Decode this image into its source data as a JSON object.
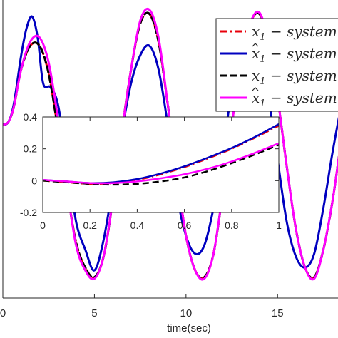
{
  "chart_data": [
    {
      "type": "line",
      "role": "main",
      "xlabel": "time(sec)",
      "xlim": [
        0,
        19
      ],
      "ylim": [
        -1.1,
        1.05
      ],
      "xticks": [
        0,
        5,
        10,
        15
      ],
      "xtick_labels": [
        "0",
        "5",
        "10",
        "15"
      ],
      "grid": false,
      "legend_position": "top-right",
      "series": [
        {
          "name": "x_1 - system",
          "color": "#e8000b",
          "style": "dashdot",
          "x": [
            0,
            0.3,
            0.6,
            1.0,
            1.5,
            2.0,
            2.5,
            3.0,
            3.5,
            4.0,
            4.5,
            5.0,
            5.5,
            6.0,
            6.5,
            7.0,
            7.5,
            8.0,
            8.5,
            9.0,
            9.5,
            10.0,
            10.5,
            11.0,
            11.5,
            12.0,
            12.5,
            13.0,
            13.5,
            14.0,
            14.5,
            15.0,
            15.5,
            16.0,
            16.5,
            17.0,
            17.5,
            18.0,
            18.5,
            19.0
          ],
          "y": [
            0.15,
            0.17,
            0.28,
            0.55,
            0.72,
            0.72,
            0.52,
            0.12,
            -0.32,
            -0.7,
            -0.88,
            -0.95,
            -0.8,
            -0.4,
            0.1,
            0.55,
            0.88,
            0.95,
            0.75,
            0.3,
            -0.2,
            -0.65,
            -0.9,
            -0.95,
            -0.78,
            -0.35,
            0.15,
            0.6,
            0.88,
            0.95,
            0.75,
            0.35,
            -0.15,
            -0.6,
            -0.88,
            -0.95,
            -0.75,
            -0.4,
            0.05,
            0.4
          ]
        },
        {
          "name": "x̂_1 - system",
          "color": "#0000c0",
          "style": "solid",
          "x": [
            0,
            0.3,
            0.6,
            1.0,
            1.3,
            1.6,
            1.9,
            2.2,
            2.6,
            3.0,
            3.5,
            4.0,
            4.5,
            5.0,
            5.5,
            6.0,
            6.5,
            7.0,
            7.5,
            8.0,
            8.5,
            9.0,
            9.5,
            10.0,
            10.5,
            11.0,
            11.5,
            12.0,
            12.5,
            13.0,
            13.5,
            14.0,
            14.5,
            15.0,
            15.5,
            16.0,
            16.5,
            17.0,
            17.5,
            18.0,
            18.5,
            19.0
          ],
          "y": [
            0.15,
            0.17,
            0.3,
            0.65,
            0.85,
            0.93,
            0.78,
            0.45,
            0.42,
            0.3,
            -0.1,
            -0.55,
            -0.75,
            -0.9,
            -0.68,
            -0.3,
            0.1,
            0.45,
            0.65,
            0.72,
            0.55,
            0.15,
            -0.35,
            -0.65,
            -0.78,
            -0.72,
            -0.45,
            -0.05,
            0.4,
            0.7,
            0.8,
            0.7,
            0.35,
            -0.1,
            -0.55,
            -0.8,
            -0.88,
            -0.78,
            -0.45,
            -0.05,
            0.3,
            0.55
          ]
        },
        {
          "name": "x_1 - system",
          "color": "#000000",
          "style": "dashed",
          "x": [
            0,
            0.3,
            0.6,
            1.0,
            1.5,
            2.0,
            2.5,
            3.0,
            3.5,
            4.0,
            4.5,
            5.0,
            5.5,
            6.0,
            6.5,
            7.0,
            7.5,
            8.0,
            8.5,
            9.0,
            9.5,
            10.0,
            10.5,
            11.0,
            11.5,
            12.0,
            12.5,
            13.0,
            13.5,
            14.0,
            14.5,
            15.0,
            15.5,
            16.0,
            16.5,
            17.0,
            17.5,
            18.0,
            18.5,
            19.0
          ],
          "y": [
            0.15,
            0.17,
            0.28,
            0.55,
            0.72,
            0.72,
            0.52,
            0.12,
            -0.32,
            -0.7,
            -0.88,
            -0.95,
            -0.8,
            -0.4,
            0.1,
            0.55,
            0.88,
            0.95,
            0.75,
            0.3,
            -0.2,
            -0.65,
            -0.9,
            -0.95,
            -0.78,
            -0.35,
            0.15,
            0.6,
            0.88,
            0.95,
            0.75,
            0.35,
            -0.15,
            -0.6,
            -0.88,
            -0.95,
            -0.75,
            -0.4,
            0.05,
            0.4
          ]
        },
        {
          "name": "x̂_1 - system",
          "color": "#ff00ff",
          "style": "solid",
          "x": [
            0,
            0.3,
            0.6,
            1.0,
            1.5,
            2.0,
            2.5,
            3.0,
            3.5,
            4.0,
            4.5,
            5.0,
            5.5,
            6.0,
            6.5,
            7.0,
            7.5,
            8.0,
            8.5,
            9.0,
            9.5,
            10.0,
            10.5,
            11.0,
            11.5,
            12.0,
            12.5,
            13.0,
            13.5,
            14.0,
            14.5,
            15.0,
            15.5,
            16.0,
            16.5,
            17.0,
            17.5,
            18.0,
            18.5,
            19.0
          ],
          "y": [
            0.15,
            0.17,
            0.28,
            0.55,
            0.75,
            0.78,
            0.6,
            0.2,
            -0.3,
            -0.72,
            -0.9,
            -0.96,
            -0.8,
            -0.4,
            0.1,
            0.55,
            0.9,
            0.98,
            0.78,
            0.3,
            -0.2,
            -0.65,
            -0.9,
            -0.96,
            -0.78,
            -0.35,
            0.15,
            0.6,
            0.88,
            0.96,
            0.75,
            0.35,
            -0.15,
            -0.6,
            -0.88,
            -0.96,
            -0.75,
            -0.4,
            0.05,
            0.4
          ]
        }
      ]
    },
    {
      "type": "line",
      "role": "inset",
      "xlim": [
        0,
        1
      ],
      "ylim": [
        -0.2,
        0.4
      ],
      "xticks": [
        0,
        0.2,
        0.4,
        0.6,
        0.8,
        1
      ],
      "xtick_labels": [
        "0",
        "0.2",
        "0.4",
        "0.6",
        "0.8",
        "1"
      ],
      "yticks": [
        -0.2,
        0,
        0.2,
        0.4
      ],
      "ytick_labels": [
        "-0.2",
        "0",
        "0.2",
        "0.4"
      ],
      "series": [
        {
          "name": "x_1 - system",
          "color": "#e8000b",
          "style": "dashdot",
          "x": [
            0,
            0.1,
            0.2,
            0.3,
            0.4,
            0.5,
            0.6,
            0.7,
            0.8,
            0.9,
            1.0
          ],
          "y": [
            0.0,
            -0.01,
            -0.02,
            -0.015,
            0.005,
            0.04,
            0.085,
            0.14,
            0.2,
            0.27,
            0.345
          ]
        },
        {
          "name": "x̂_1 - system",
          "color": "#0000c0",
          "style": "solid",
          "x": [
            0,
            0.1,
            0.2,
            0.3,
            0.4,
            0.5,
            0.6,
            0.7,
            0.8,
            0.9,
            1.0
          ],
          "y": [
            0.005,
            -0.005,
            -0.015,
            -0.01,
            0.01,
            0.045,
            0.09,
            0.145,
            0.205,
            0.275,
            0.355
          ]
        },
        {
          "name": "x_1 - system",
          "color": "#000000",
          "style": "dashed",
          "x": [
            0,
            0.1,
            0.2,
            0.3,
            0.4,
            0.5,
            0.6,
            0.7,
            0.8,
            0.9,
            1.0
          ],
          "y": [
            0.0,
            -0.01,
            -0.02,
            -0.025,
            -0.02,
            -0.005,
            0.02,
            0.06,
            0.11,
            0.165,
            0.225
          ]
        },
        {
          "name": "x̂_1 - system",
          "color": "#ff00ff",
          "style": "solid",
          "x": [
            0,
            0.1,
            0.2,
            0.3,
            0.4,
            0.5,
            0.6,
            0.7,
            0.8,
            0.9,
            1.0
          ],
          "y": [
            0.005,
            -0.005,
            -0.015,
            -0.015,
            -0.005,
            0.015,
            0.04,
            0.075,
            0.12,
            0.175,
            0.235
          ]
        }
      ]
    }
  ],
  "legend": {
    "entries": [
      {
        "hat": false,
        "var": "x",
        "sub": "1",
        "rest": " − system",
        "color": "#e8000b",
        "style": "dashdot"
      },
      {
        "hat": true,
        "var": "x",
        "sub": "1",
        "rest": " − system",
        "color": "#0000c0",
        "style": "solid"
      },
      {
        "hat": false,
        "var": "x",
        "sub": "1",
        "rest": " − system",
        "color": "#000000",
        "style": "dashed"
      },
      {
        "hat": true,
        "var": "x",
        "sub": "1",
        "rest": " − system",
        "color": "#ff00ff",
        "style": "solid"
      }
    ]
  }
}
